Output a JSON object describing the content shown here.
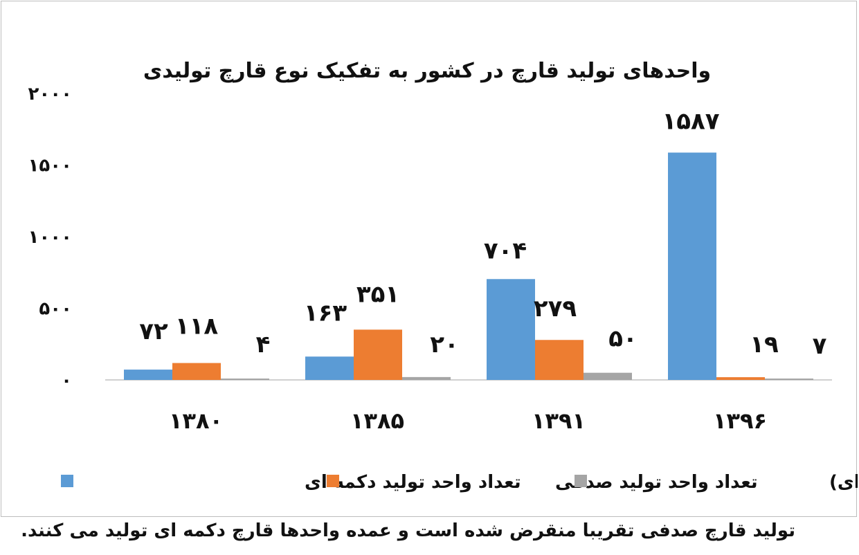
{
  "chart_data": {
    "type": "bar",
    "title": "واحدهای تولید قارچ در کشور به تفکیک نوع قارچ تولیدی",
    "categories": [
      "۱۳۸۰",
      "۱۳۸۵",
      "۱۳۹۱",
      "۱۳۹۶"
    ],
    "series": [
      {
        "name": "تعداد واحد تولید دکمه ای",
        "color": "#5b9bd5",
        "values": [
          72,
          163,
          704,
          1587
        ],
        "labels": [
          "۷۲",
          "۱۶۳",
          "۷۰۴",
          "۱۵۸۷"
        ]
      },
      {
        "name": "تعداد واحد تولید صدفی",
        "color": "#ed7d31",
        "values": [
          118,
          351,
          279,
          19
        ],
        "labels": [
          "۱۱۸",
          "۳۵۱",
          "۲۷۹",
          "۱۹"
        ]
      },
      {
        "name": "توام (صدفی و دکمه ای)",
        "color": "#a5a5a5",
        "values": [
          4,
          20,
          50,
          7
        ],
        "labels": [
          "۴",
          "۲۰",
          "۵۰",
          "۷"
        ]
      }
    ],
    "yticks": [
      0,
      500,
      1000,
      1500,
      2000
    ],
    "ytick_labels": [
      "۰",
      "۵۰۰",
      "۱۰۰۰",
      "۱۵۰۰",
      "۲۰۰۰"
    ],
    "ylim": [
      0,
      2000
    ],
    "grid": false,
    "legend_position": "bottom"
  },
  "caption": "تولید قارچ صدفی تقریبا منقرض شده است و عمده واحدها قارچ دکمه ای تولید می کنند."
}
